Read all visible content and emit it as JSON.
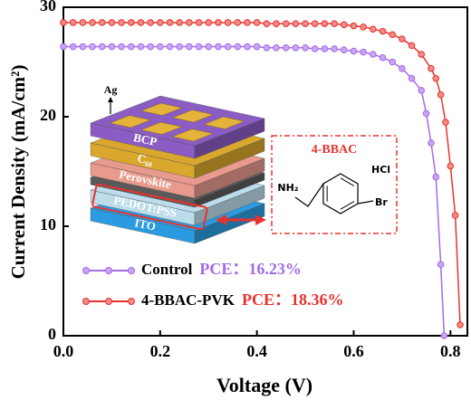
{
  "chart_data": {
    "type": "line",
    "xlabel": "Voltage (V)",
    "ylabel": "Current Density (mA/cm²)",
    "xlim": [
      0,
      0.835
    ],
    "ylim": [
      0,
      30
    ],
    "xticks": [
      {
        "value": 0,
        "label": "0.0"
      },
      0.2,
      0.4,
      0.6,
      0.8
    ],
    "yticks": [
      0,
      10,
      20,
      30
    ],
    "legend": "lower left",
    "series": [
      {
        "name": "Control",
        "pce": "PCE：16.23%",
        "color": "#a36be8",
        "marker_fill": "#c9a5f2",
        "x": [
          0,
          0.02,
          0.04,
          0.06,
          0.08,
          0.1,
          0.12,
          0.14,
          0.16,
          0.18,
          0.2,
          0.22,
          0.24,
          0.26,
          0.28,
          0.3,
          0.32,
          0.34,
          0.36,
          0.38,
          0.4,
          0.42,
          0.44,
          0.46,
          0.48,
          0.5,
          0.52,
          0.54,
          0.56,
          0.58,
          0.6,
          0.62,
          0.64,
          0.66,
          0.68,
          0.7,
          0.72,
          0.74,
          0.75,
          0.76,
          0.77,
          0.78,
          0.787
        ],
        "values": [
          26.4,
          26.4,
          26.4,
          26.4,
          26.4,
          26.4,
          26.4,
          26.4,
          26.4,
          26.4,
          26.4,
          26.4,
          26.4,
          26.4,
          26.4,
          26.4,
          26.4,
          26.4,
          26.4,
          26.4,
          26.4,
          26.3,
          26.3,
          26.3,
          26.3,
          26.3,
          26.2,
          26.2,
          26.2,
          26.1,
          26.0,
          25.9,
          25.7,
          25.4,
          25.0,
          24.4,
          23.5,
          22.4,
          20.3,
          17.6,
          14.5,
          6.5,
          0
        ]
      },
      {
        "name": "4-BBAC-PVK",
        "pce": "PCE：18.36%",
        "color": "#e8322e",
        "marker_fill": "#f28a86",
        "x": [
          0,
          0.02,
          0.04,
          0.06,
          0.08,
          0.1,
          0.12,
          0.14,
          0.16,
          0.18,
          0.2,
          0.22,
          0.24,
          0.26,
          0.28,
          0.3,
          0.32,
          0.34,
          0.36,
          0.38,
          0.4,
          0.42,
          0.44,
          0.46,
          0.48,
          0.5,
          0.52,
          0.54,
          0.56,
          0.58,
          0.6,
          0.62,
          0.64,
          0.66,
          0.68,
          0.7,
          0.72,
          0.74,
          0.76,
          0.77,
          0.78,
          0.79,
          0.8,
          0.81,
          0.82
        ],
        "values": [
          28.6,
          28.6,
          28.6,
          28.6,
          28.6,
          28.6,
          28.6,
          28.6,
          28.6,
          28.6,
          28.6,
          28.6,
          28.6,
          28.6,
          28.6,
          28.6,
          28.6,
          28.6,
          28.6,
          28.6,
          28.6,
          28.5,
          28.5,
          28.5,
          28.5,
          28.5,
          28.5,
          28.5,
          28.5,
          28.4,
          28.3,
          28.2,
          28.0,
          27.8,
          27.5,
          27.1,
          26.5,
          25.7,
          24.4,
          23.5,
          22.0,
          19.5,
          15.5,
          11.0,
          1.0
        ]
      }
    ]
  },
  "inset": {
    "top_contact": "Ag",
    "layers": [
      {
        "label": "ITO",
        "color": "#2a9be0"
      },
      {
        "label": "PEDOT:PSS",
        "color": "#bcdcec"
      },
      {
        "label": "Perovskite",
        "color": "#e89a8c"
      },
      {
        "label": "C₆₀",
        "color": "#d8a72c"
      },
      {
        "label": "BCP",
        "color": "#8a5cc4"
      }
    ],
    "molecule": {
      "title": "4-BBAC",
      "amine": "NH₂",
      "salt": "HCl",
      "halogen": "Br"
    }
  }
}
